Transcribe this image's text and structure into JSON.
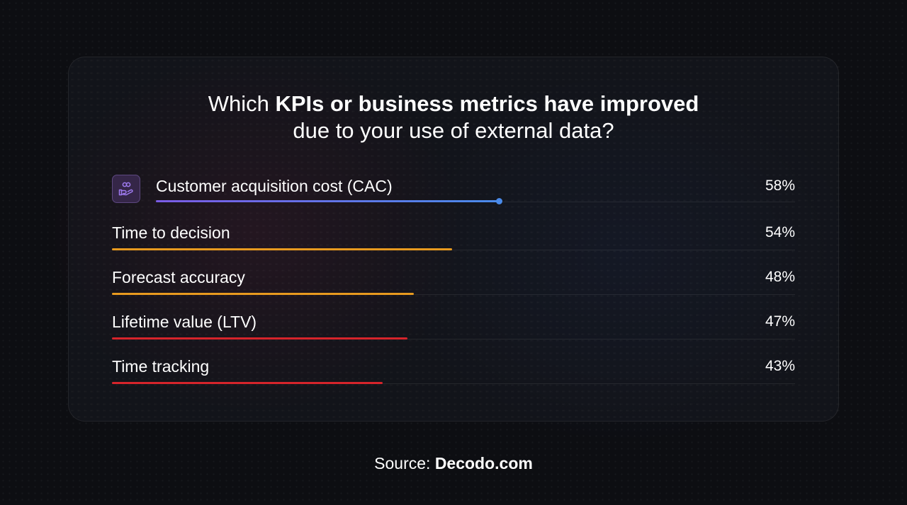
{
  "title": {
    "line1_prefix": "Which ",
    "line1_bold": "KPIs or business metrics have improved",
    "line2": "due to your use of external data?"
  },
  "source": {
    "prefix": "Source: ",
    "brand": "Decodo.com"
  },
  "colors": {
    "background": "#0d0e12",
    "highlight_gradient": [
      "#7b5ce6",
      "#4a8bea"
    ],
    "orange": "#e89a1f",
    "red": "#d6242b"
  },
  "highlight_icon": "hand-holding-people-icon",
  "chart_data": {
    "type": "bar",
    "orientation": "horizontal",
    "categories": [
      "Customer acquisition cost (CAC)",
      "Time to decision",
      "Forecast accuracy",
      "Lifetime value (LTV)",
      "Time tracking"
    ],
    "values": [
      58,
      54,
      48,
      47,
      43
    ],
    "value_labels": [
      "58%",
      "54%",
      "48%",
      "47%",
      "43%"
    ],
    "unit": "%",
    "xlim": [
      0,
      100
    ],
    "bar_colors": [
      "gradient",
      "#e89a1f",
      "#e89a1f",
      "#d6242b",
      "#d6242b"
    ],
    "highlighted": "Customer acquisition cost (CAC)"
  }
}
